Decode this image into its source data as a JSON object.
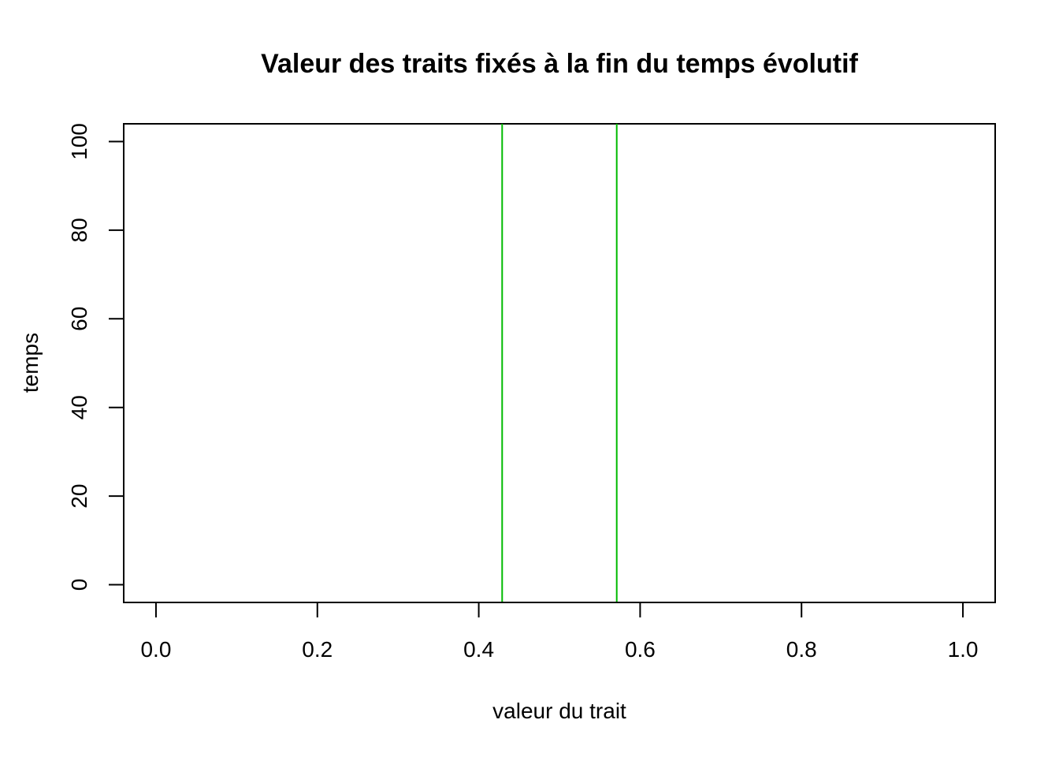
{
  "chart_data": {
    "type": "line",
    "title": "Valeur des traits fixés à la fin du temps évolutif",
    "xlabel": "valeur du trait",
    "ylabel": "temps",
    "xlim": [
      -0.04,
      1.04
    ],
    "ylim": [
      -4,
      104
    ],
    "x_ticks": [
      "0.0",
      "0.2",
      "0.4",
      "0.6",
      "0.8",
      "1.0"
    ],
    "y_ticks": [
      "0",
      "20",
      "40",
      "60",
      "80",
      "100"
    ],
    "grid": false,
    "legend": "none",
    "series": [
      {
        "x": [
          0.429,
          0.429
        ],
        "y": [
          -4,
          104
        ],
        "color": "#00bb00"
      },
      {
        "x": [
          0.571,
          0.571
        ],
        "y": [
          -4,
          104
        ],
        "color": "#00bb00"
      }
    ]
  }
}
